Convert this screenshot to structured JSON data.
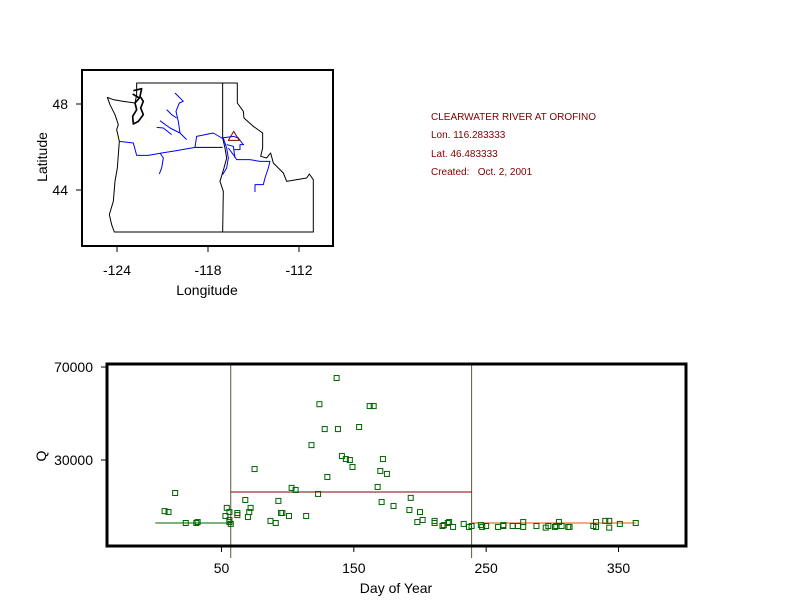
{
  "station": {
    "name": "CLEARWATER RIVER AT OROFINO",
    "lon": "Lon. 116.283333",
    "lat": "Lat. 46.483333",
    "created": "Created:   Oct. 2, 2001"
  },
  "map": {
    "xlabel": "Longitude",
    "ylabel": "Latitude",
    "xticks": [
      "-124",
      "-118",
      "-112"
    ],
    "yticks": [
      "48",
      "44"
    ],
    "colors": {
      "border": "#000000",
      "rivers": "#0000ff",
      "station": "#800000"
    }
  },
  "chart_data": {
    "type": "scatter",
    "xlabel": "Day of Year",
    "ylabel": "Q",
    "xlim": [
      -36.5,
      401
    ],
    "ylim": [
      -7000,
      71300
    ],
    "xticks": [
      50,
      150,
      250,
      350
    ],
    "yticks": [
      30000,
      70000
    ],
    "xtick_labels": [
      "50",
      "150",
      "250",
      "350"
    ],
    "ytick_labels": [
      "30000",
      "70000"
    ],
    "grid": false,
    "marker_color": "#006400",
    "season_boundaries": {
      "days": [
        57,
        239
      ],
      "color": "#5a5a3c"
    },
    "season_means": [
      {
        "name": "winter",
        "from": 0,
        "to": 57,
        "value": 2900,
        "color": "#006400"
      },
      {
        "name": "runoff",
        "from": 57,
        "to": 239,
        "value": 16240,
        "color": "#800000"
      },
      {
        "name": "baseflow",
        "from": 239,
        "to": 363,
        "value": 2900,
        "color": "#e05a00"
      }
    ],
    "points": [
      [
        137,
        65260
      ],
      [
        124,
        54000
      ],
      [
        162,
        53200
      ],
      [
        165,
        53200
      ],
      [
        128,
        43300
      ],
      [
        138,
        43300
      ],
      [
        154,
        44200
      ],
      [
        118,
        36400
      ],
      [
        141,
        31700
      ],
      [
        144,
        30400
      ],
      [
        147,
        30000
      ],
      [
        149,
        27000
      ],
      [
        172,
        30400
      ],
      [
        170,
        25300
      ],
      [
        175,
        24000
      ],
      [
        75,
        26100
      ],
      [
        130,
        22700
      ],
      [
        168,
        18400
      ],
      [
        103,
        18000
      ],
      [
        106,
        17100
      ],
      [
        123,
        15400
      ],
      [
        171,
        11900
      ],
      [
        180,
        10200
      ],
      [
        15,
        15800
      ],
      [
        7,
        8000
      ],
      [
        10,
        7600
      ],
      [
        23,
        2900
      ],
      [
        31,
        2900
      ],
      [
        32,
        3300
      ],
      [
        54,
        9400
      ],
      [
        68,
        12800
      ],
      [
        72,
        9400
      ],
      [
        71,
        7600
      ],
      [
        70,
        5500
      ],
      [
        53,
        5900
      ],
      [
        56,
        7600
      ],
      [
        62,
        7200
      ],
      [
        62,
        6300
      ],
      [
        56,
        4200
      ],
      [
        56,
        3300
      ],
      [
        57,
        2500
      ],
      [
        93,
        12400
      ],
      [
        95,
        7200
      ],
      [
        96,
        7200
      ],
      [
        101,
        5900
      ],
      [
        114,
        5900
      ],
      [
        87,
        3800
      ],
      [
        91,
        2900
      ],
      [
        193,
        13700
      ],
      [
        192,
        8500
      ],
      [
        200,
        7600
      ],
      [
        198,
        3300
      ],
      [
        202,
        4200
      ],
      [
        211,
        3800
      ],
      [
        211,
        2900
      ],
      [
        217,
        1600
      ],
      [
        218,
        2000
      ],
      [
        221,
        2900
      ],
      [
        222,
        3300
      ],
      [
        225,
        1200
      ],
      [
        233,
        2500
      ],
      [
        237,
        1200
      ],
      [
        239,
        1600
      ],
      [
        246,
        2000
      ],
      [
        247,
        1200
      ],
      [
        250,
        1600
      ],
      [
        259,
        1200
      ],
      [
        263,
        2000
      ],
      [
        263,
        1600
      ],
      [
        270,
        1600
      ],
      [
        274,
        1600
      ],
      [
        278,
        3300
      ],
      [
        278,
        1200
      ],
      [
        288,
        1600
      ],
      [
        295,
        900
      ],
      [
        297,
        1600
      ],
      [
        302,
        1200
      ],
      [
        303,
        1600
      ],
      [
        305,
        3300
      ],
      [
        307,
        1600
      ],
      [
        312,
        1200
      ],
      [
        313,
        1200
      ],
      [
        331,
        1600
      ],
      [
        333,
        1200
      ],
      [
        333,
        3300
      ],
      [
        340,
        3800
      ],
      [
        343,
        3800
      ],
      [
        343,
        900
      ],
      [
        351,
        2500
      ],
      [
        363,
        2900
      ]
    ]
  }
}
